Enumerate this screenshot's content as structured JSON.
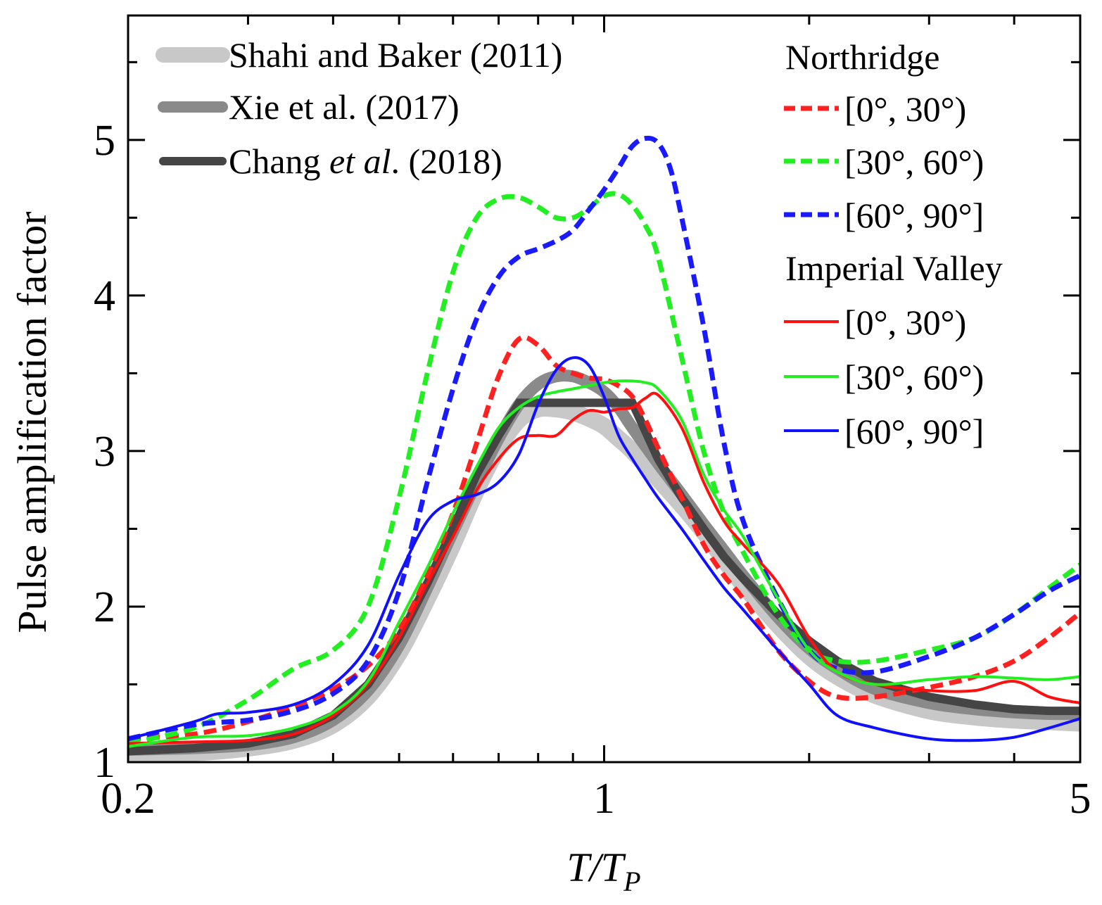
{
  "chart_data": {
    "type": "line",
    "title": "",
    "xlabel_parts": {
      "main": "T/T",
      "sub": "P"
    },
    "ylabel": "Pulse amplification factor",
    "xscale": "log",
    "xlim": [
      0.2,
      5
    ],
    "ylim": [
      1,
      5.8
    ],
    "xticks": [
      {
        "value": 0.2,
        "label": "0.2"
      },
      {
        "value": 1,
        "label": "1"
      },
      {
        "value": 5,
        "label": "5"
      }
    ],
    "xminor": [
      0.3,
      0.4,
      0.5,
      0.6,
      0.7,
      0.8,
      0.9,
      2,
      3,
      4
    ],
    "yticks": [
      {
        "value": 1,
        "label": "1"
      },
      {
        "value": 2,
        "label": "2"
      },
      {
        "value": 3,
        "label": "3"
      },
      {
        "value": 4,
        "label": "4"
      },
      {
        "value": 5,
        "label": "5"
      }
    ],
    "yminor": [
      1.5,
      2.5,
      3.5,
      4.5,
      5.5
    ],
    "grid": false,
    "legend_placement": "top",
    "legend_left": [
      {
        "text": "Shahi and Baker (2011)",
        "series": "shahi"
      },
      {
        "text_pre": "Chang ",
        "text_italic": "et al",
        "text_post": ". (2018)",
        "series": "chang"
      },
      {
        "text": "Xie et al. (2017)",
        "series": "xie"
      }
    ],
    "legend_right": {
      "group1": "Northridge",
      "group2": "Imperial Valley",
      "items": [
        {
          "text": "[0°, 30°)",
          "series": "n1"
        },
        {
          "text": "[30°, 60°)",
          "series": "n2"
        },
        {
          "text": "[60°, 90°]",
          "series": "n3"
        },
        {
          "text": "[0°, 30°)",
          "series": "i1"
        },
        {
          "text": "[30°, 60°)",
          "series": "i2"
        },
        {
          "text": "[60°, 90°]",
          "series": "i3"
        }
      ]
    },
    "series": [
      {
        "id": "shahi",
        "color": "#c8c8c8",
        "style": "band",
        "x": [
          0.2,
          0.25,
          0.3,
          0.35,
          0.4,
          0.45,
          0.5,
          0.55,
          0.6,
          0.65,
          0.7,
          0.75,
          0.8,
          0.85,
          0.9,
          0.95,
          1.0,
          1.05,
          1.1,
          1.2,
          1.3,
          1.4,
          1.5,
          1.6,
          1.8,
          2.0,
          2.2,
          2.5,
          3.0,
          3.5,
          4.0,
          4.5,
          5.0
        ],
        "y": [
          1.05,
          1.06,
          1.09,
          1.14,
          1.24,
          1.42,
          1.7,
          2.05,
          2.4,
          2.75,
          3.02,
          3.2,
          3.27,
          3.27,
          3.25,
          3.21,
          3.16,
          3.08,
          3.0,
          2.82,
          2.65,
          2.48,
          2.3,
          2.14,
          1.88,
          1.68,
          1.55,
          1.43,
          1.33,
          1.29,
          1.27,
          1.26,
          1.25
        ]
      },
      {
        "id": "xie",
        "color": "#8a8a8a",
        "style": "band",
        "x": [
          0.2,
          0.25,
          0.3,
          0.35,
          0.4,
          0.45,
          0.5,
          0.55,
          0.6,
          0.65,
          0.7,
          0.75,
          0.8,
          0.85,
          0.9,
          0.95,
          1.0,
          1.05,
          1.1,
          1.2,
          1.3,
          1.4,
          1.5,
          1.6,
          1.8,
          2.0,
          2.2,
          2.5,
          3.0,
          3.5,
          4.0,
          4.5,
          5.0
        ],
        "y": [
          1.08,
          1.09,
          1.11,
          1.16,
          1.27,
          1.46,
          1.75,
          2.12,
          2.48,
          2.8,
          3.08,
          3.3,
          3.43,
          3.48,
          3.48,
          3.44,
          3.38,
          3.28,
          3.15,
          2.92,
          2.72,
          2.53,
          2.36,
          2.2,
          1.93,
          1.73,
          1.6,
          1.47,
          1.38,
          1.34,
          1.32,
          1.31,
          1.31
        ]
      },
      {
        "id": "chang",
        "color": "#454545",
        "style": "thick",
        "x": [
          0.2,
          0.25,
          0.3,
          0.35,
          0.4,
          0.45,
          0.5,
          0.55,
          0.6,
          0.65,
          0.7,
          0.75,
          0.8,
          1.0,
          1.1,
          1.2,
          1.3,
          1.4,
          1.5,
          1.6,
          1.8,
          2.0,
          2.2,
          2.5,
          3.0,
          3.5,
          4.0,
          4.5,
          5.0
        ],
        "y": [
          1.07,
          1.09,
          1.12,
          1.18,
          1.3,
          1.5,
          1.8,
          2.15,
          2.5,
          2.85,
          3.1,
          3.31,
          3.31,
          3.31,
          3.31,
          2.95,
          2.7,
          2.5,
          2.32,
          2.18,
          1.95,
          1.78,
          1.65,
          1.52,
          1.42,
          1.37,
          1.34,
          1.33,
          1.33
        ]
      },
      {
        "id": "n1",
        "color": "#ff2020",
        "style": "dash",
        "x": [
          0.2,
          0.25,
          0.3,
          0.35,
          0.4,
          0.45,
          0.5,
          0.55,
          0.6,
          0.65,
          0.7,
          0.75,
          0.8,
          0.85,
          0.9,
          0.95,
          1.0,
          1.05,
          1.1,
          1.15,
          1.2,
          1.3,
          1.4,
          1.5,
          1.6,
          1.8,
          2.0,
          2.2,
          2.5,
          3.0,
          3.5,
          4.0,
          4.5,
          5.0
        ],
        "y": [
          1.15,
          1.18,
          1.26,
          1.36,
          1.47,
          1.62,
          1.85,
          2.2,
          2.6,
          3.05,
          3.48,
          3.72,
          3.68,
          3.55,
          3.5,
          3.47,
          3.46,
          3.42,
          3.35,
          3.2,
          3.02,
          2.7,
          2.4,
          2.2,
          2.05,
          1.72,
          1.52,
          1.42,
          1.42,
          1.48,
          1.55,
          1.65,
          1.8,
          1.96
        ]
      },
      {
        "id": "n2",
        "color": "#22ee22",
        "style": "dash",
        "x": [
          0.2,
          0.25,
          0.3,
          0.35,
          0.4,
          0.45,
          0.5,
          0.55,
          0.6,
          0.65,
          0.7,
          0.75,
          0.8,
          0.85,
          0.9,
          0.95,
          1.0,
          1.05,
          1.1,
          1.15,
          1.2,
          1.3,
          1.4,
          1.5,
          1.6,
          1.8,
          2.0,
          2.2,
          2.5,
          3.0,
          3.5,
          4.0,
          4.5,
          5.0
        ],
        "y": [
          1.12,
          1.22,
          1.4,
          1.6,
          1.72,
          2.0,
          2.7,
          3.5,
          4.15,
          4.5,
          4.62,
          4.63,
          4.57,
          4.5,
          4.5,
          4.56,
          4.64,
          4.65,
          4.58,
          4.45,
          4.25,
          3.6,
          3.0,
          2.6,
          2.35,
          1.95,
          1.72,
          1.65,
          1.65,
          1.72,
          1.8,
          1.95,
          2.12,
          2.27
        ]
      },
      {
        "id": "n3",
        "color": "#1a1aff",
        "style": "dash",
        "x": [
          0.2,
          0.25,
          0.3,
          0.35,
          0.4,
          0.45,
          0.5,
          0.55,
          0.6,
          0.65,
          0.7,
          0.75,
          0.8,
          0.85,
          0.9,
          0.95,
          1.0,
          1.05,
          1.1,
          1.15,
          1.2,
          1.25,
          1.3,
          1.4,
          1.5,
          1.6,
          1.8,
          2.0,
          2.2,
          2.5,
          3.0,
          3.5,
          4.0,
          4.5,
          5.0
        ],
        "y": [
          1.15,
          1.24,
          1.27,
          1.33,
          1.44,
          1.65,
          2.1,
          2.8,
          3.4,
          3.85,
          4.12,
          4.25,
          4.3,
          4.35,
          4.42,
          4.55,
          4.68,
          4.82,
          4.96,
          5.01,
          4.98,
          4.82,
          4.5,
          3.8,
          3.05,
          2.55,
          2.05,
          1.72,
          1.6,
          1.58,
          1.68,
          1.8,
          1.95,
          2.1,
          2.2
        ]
      },
      {
        "id": "i1",
        "color": "#ff1010",
        "style": "solid",
        "x": [
          0.2,
          0.25,
          0.3,
          0.35,
          0.4,
          0.45,
          0.5,
          0.55,
          0.6,
          0.65,
          0.7,
          0.75,
          0.8,
          0.85,
          0.9,
          0.95,
          1.0,
          1.05,
          1.1,
          1.15,
          1.2,
          1.3,
          1.4,
          1.5,
          1.6,
          1.8,
          2.0,
          2.2,
          2.5,
          3.0,
          3.5,
          4.0,
          4.5,
          5.0
        ],
        "y": [
          1.12,
          1.13,
          1.14,
          1.18,
          1.3,
          1.5,
          1.8,
          2.15,
          2.45,
          2.75,
          2.95,
          3.08,
          3.1,
          3.1,
          3.2,
          3.26,
          3.25,
          3.27,
          3.28,
          3.34,
          3.36,
          3.15,
          2.8,
          2.55,
          2.4,
          2.15,
          1.8,
          1.58,
          1.5,
          1.46,
          1.46,
          1.52,
          1.42,
          1.38
        ]
      },
      {
        "id": "i2",
        "color": "#22ee22",
        "style": "solid",
        "x": [
          0.2,
          0.25,
          0.3,
          0.35,
          0.4,
          0.45,
          0.5,
          0.55,
          0.6,
          0.65,
          0.7,
          0.75,
          0.8,
          0.85,
          0.9,
          0.95,
          1.0,
          1.05,
          1.1,
          1.15,
          1.2,
          1.3,
          1.4,
          1.5,
          1.6,
          1.8,
          2.0,
          2.2,
          2.5,
          3.0,
          3.5,
          4.0,
          4.5,
          5.0
        ],
        "y": [
          1.1,
          1.16,
          1.17,
          1.22,
          1.32,
          1.52,
          1.9,
          2.25,
          2.6,
          2.9,
          3.15,
          3.28,
          3.35,
          3.38,
          3.4,
          3.42,
          3.44,
          3.45,
          3.45,
          3.44,
          3.4,
          3.2,
          2.85,
          2.62,
          2.45,
          2.05,
          1.72,
          1.58,
          1.5,
          1.53,
          1.55,
          1.54,
          1.53,
          1.55
        ]
      },
      {
        "id": "i3",
        "color": "#1010ff",
        "style": "solid",
        "x": [
          0.2,
          0.25,
          0.27,
          0.3,
          0.35,
          0.4,
          0.45,
          0.5,
          0.55,
          0.6,
          0.65,
          0.7,
          0.75,
          0.8,
          0.85,
          0.9,
          0.95,
          1.0,
          1.05,
          1.1,
          1.15,
          1.2,
          1.3,
          1.4,
          1.5,
          1.6,
          1.8,
          2.0,
          2.2,
          2.5,
          3.0,
          3.5,
          4.0,
          4.5,
          5.0
        ],
        "y": [
          1.15,
          1.26,
          1.31,
          1.32,
          1.37,
          1.5,
          1.75,
          2.2,
          2.55,
          2.68,
          2.72,
          2.8,
          2.98,
          3.3,
          3.52,
          3.6,
          3.55,
          3.35,
          3.1,
          2.95,
          2.82,
          2.7,
          2.5,
          2.3,
          2.12,
          1.98,
          1.72,
          1.5,
          1.3,
          1.22,
          1.15,
          1.14,
          1.16,
          1.22,
          1.28
        ]
      }
    ]
  }
}
